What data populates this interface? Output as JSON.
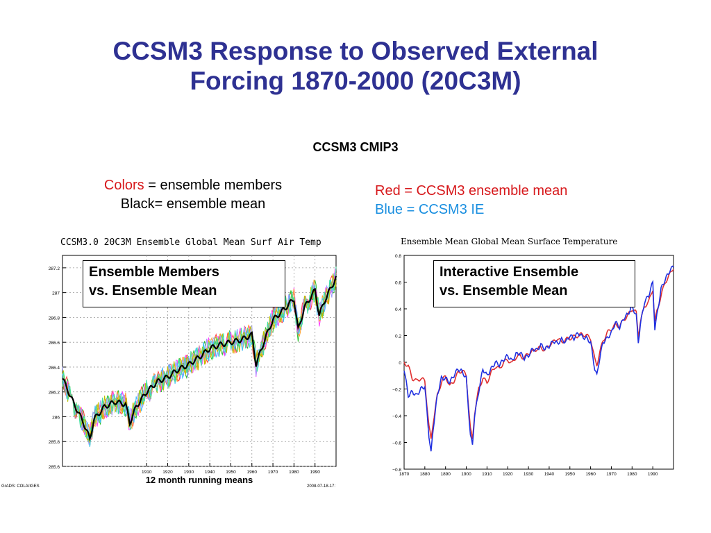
{
  "slide": {
    "title_line1": "CCSM3 Response to Observed External",
    "title_line2": "Forcing 1870-2000 (20C3M)",
    "subtitle": "CCSM3 CMIP3",
    "left_caption": {
      "colors_word": "Colors",
      "line1_rest": " = ensemble members",
      "line2": "Black= ensemble mean"
    },
    "right_caption": {
      "red_line": "Red = CCSM3 ensemble mean",
      "blue_line": "Blue = CCSM3 IE"
    },
    "left_box": {
      "line1": "Ensemble Members",
      "line2": "vs. Ensemble Mean"
    },
    "right_box": {
      "line1": "Interactive Ensemble",
      "line2": "vs. Ensemble Mean"
    },
    "left_footer_left": "GrADS: COLA/IGES",
    "left_footer_right": "2008-07-18-17:",
    "colors": {
      "title": "#2e3192",
      "red": "#d7191c",
      "blue": "#1a8fe0"
    }
  },
  "chart_data": [
    {
      "type": "line",
      "title": "CCSM3.0 20C3M Ensemble Global Mean Surf Air Temp",
      "xlabel": "12 month running means",
      "ylabel": "",
      "xlim": [
        1870,
        2000
      ],
      "ylim": [
        285.6,
        287.3
      ],
      "x_ticks": [
        1910,
        1920,
        1930,
        1940,
        1950,
        1960,
        1970,
        1980,
        1990
      ],
      "y_ticks": [
        "285.6",
        "285.8",
        "286",
        "286.2",
        "286.4",
        "286.6",
        "286.8",
        "287",
        "287.2"
      ],
      "grid": true,
      "series_colors": [
        "#ff4040",
        "#30c030",
        "#ff40ff",
        "#ffa030",
        "#40c0ff",
        "#a0a0ff",
        "#c0c000",
        "#40e0a0"
      ],
      "mean_color": "#000000",
      "member_spread": 0.1,
      "x": [
        1870,
        1875,
        1880,
        1883,
        1885,
        1890,
        1895,
        1900,
        1902,
        1905,
        1910,
        1915,
        1920,
        1925,
        1930,
        1935,
        1940,
        1945,
        1950,
        1955,
        1960,
        1962,
        1964,
        1967,
        1970,
        1975,
        1980,
        1982,
        1985,
        1990,
        1992,
        1995,
        2000
      ],
      "mean_values": [
        286.31,
        286.12,
        285.95,
        285.82,
        285.98,
        286.08,
        286.12,
        286.1,
        285.95,
        286.08,
        286.2,
        286.28,
        286.32,
        286.38,
        286.42,
        286.48,
        286.55,
        286.58,
        286.6,
        286.62,
        286.66,
        286.42,
        286.52,
        286.66,
        286.78,
        286.86,
        286.95,
        286.7,
        286.88,
        287.02,
        286.82,
        286.95,
        287.12
      ]
    },
    {
      "type": "line",
      "title": "Ensemble Mean Global Mean Surface Temperature",
      "xlabel": "",
      "ylabel": "",
      "xlim": [
        1870,
        2000
      ],
      "ylim": [
        -0.8,
        0.8
      ],
      "x_ticks": [
        1870,
        1880,
        1890,
        1900,
        1910,
        1920,
        1930,
        1940,
        1950,
        1960,
        1970,
        1980,
        1990
      ],
      "y_ticks": [
        "0.8",
        "0.6",
        "0.4",
        "0.2",
        "0",
        "−0.2",
        "−0.4",
        "−0.6",
        "−0.8"
      ],
      "grid": false,
      "series": [
        {
          "color": "#e03030",
          "x": [
            1870,
            1872,
            1874,
            1876,
            1878,
            1880,
            1882,
            1883,
            1884,
            1886,
            1888,
            1890,
            1892,
            1894,
            1896,
            1898,
            1900,
            1902,
            1903,
            1904,
            1906,
            1908,
            1910,
            1912,
            1914,
            1916,
            1918,
            1920,
            1922,
            1924,
            1926,
            1928,
            1930,
            1932,
            1934,
            1936,
            1938,
            1940,
            1942,
            1944,
            1946,
            1948,
            1950,
            1952,
            1954,
            1956,
            1958,
            1960,
            1962,
            1963,
            1964,
            1966,
            1968,
            1970,
            1972,
            1974,
            1976,
            1978,
            1980,
            1982,
            1983,
            1984,
            1986,
            1988,
            1990,
            1991,
            1992,
            1994,
            1996,
            1998,
            2000
          ],
          "values": [
            0.0,
            -0.03,
            -0.12,
            -0.14,
            -0.12,
            -0.14,
            -0.48,
            -0.58,
            -0.45,
            -0.25,
            -0.15,
            -0.1,
            -0.18,
            -0.14,
            -0.08,
            -0.06,
            -0.1,
            -0.5,
            -0.58,
            -0.38,
            -0.2,
            -0.12,
            -0.15,
            -0.08,
            -0.03,
            -0.05,
            0.0,
            0.02,
            -0.01,
            0.04,
            0.05,
            0.03,
            0.07,
            0.08,
            0.1,
            0.11,
            0.09,
            0.13,
            0.15,
            0.18,
            0.15,
            0.17,
            0.18,
            0.19,
            0.2,
            0.21,
            0.2,
            0.18,
            0.02,
            -0.02,
            0.05,
            0.16,
            0.22,
            0.25,
            0.28,
            0.27,
            0.32,
            0.35,
            0.4,
            0.37,
            0.2,
            0.3,
            0.42,
            0.45,
            0.55,
            0.3,
            0.38,
            0.5,
            0.6,
            0.65,
            0.71
          ]
        },
        {
          "color": "#2030e0",
          "x": [
            1870,
            1872,
            1874,
            1876,
            1878,
            1880,
            1882,
            1883,
            1884,
            1886,
            1888,
            1890,
            1892,
            1894,
            1896,
            1898,
            1900,
            1902,
            1903,
            1904,
            1906,
            1908,
            1910,
            1912,
            1914,
            1916,
            1918,
            1920,
            1922,
            1924,
            1926,
            1928,
            1930,
            1932,
            1934,
            1936,
            1938,
            1940,
            1942,
            1944,
            1946,
            1948,
            1950,
            1952,
            1954,
            1956,
            1958,
            1960,
            1962,
            1963,
            1964,
            1966,
            1968,
            1970,
            1972,
            1974,
            1976,
            1978,
            1980,
            1982,
            1983,
            1984,
            1986,
            1988,
            1990,
            1991,
            1992,
            1994,
            1996,
            1998,
            2000
          ],
          "values": [
            -0.05,
            -0.25,
            -0.22,
            -0.25,
            -0.2,
            -0.18,
            -0.55,
            -0.68,
            -0.5,
            -0.25,
            -0.12,
            -0.12,
            -0.15,
            -0.1,
            -0.05,
            -0.07,
            -0.12,
            -0.55,
            -0.62,
            -0.4,
            -0.22,
            -0.05,
            -0.1,
            -0.05,
            0.0,
            -0.02,
            0.02,
            0.05,
            0.01,
            0.06,
            0.07,
            0.03,
            0.05,
            0.1,
            0.09,
            0.13,
            0.1,
            0.12,
            0.16,
            0.14,
            0.17,
            0.15,
            0.2,
            0.18,
            0.22,
            0.19,
            0.18,
            0.15,
            -0.05,
            -0.1,
            0.0,
            0.15,
            0.18,
            0.22,
            0.3,
            0.26,
            0.33,
            0.36,
            0.42,
            0.35,
            0.15,
            0.28,
            0.45,
            0.5,
            0.6,
            0.25,
            0.35,
            0.55,
            0.62,
            0.68,
            0.72
          ]
        }
      ]
    }
  ]
}
